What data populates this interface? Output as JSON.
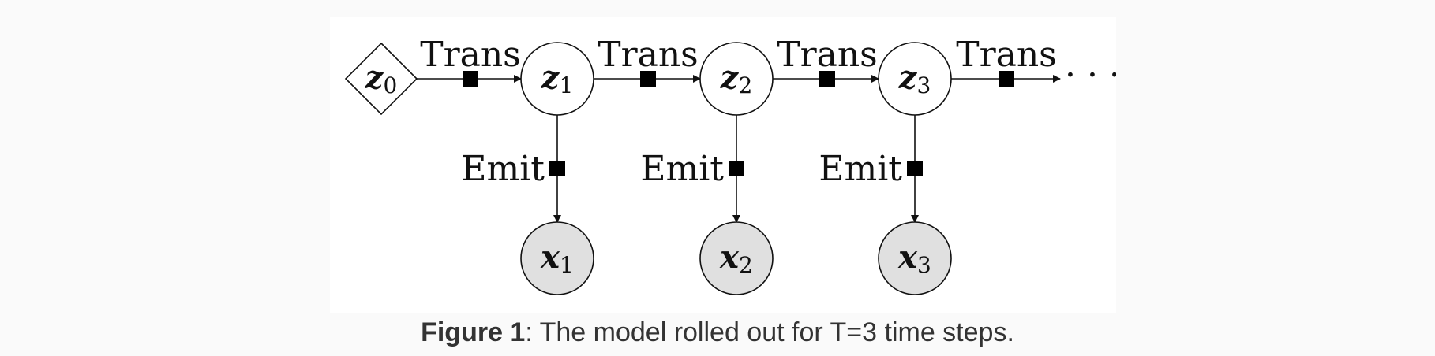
{
  "diagram": {
    "trans_label": "Trans",
    "emit_label": "Emit",
    "ellipsis": "· · ·",
    "initial_node": {
      "var": "z",
      "sub": "0"
    },
    "latent_nodes": [
      {
        "var": "z",
        "sub": "1"
      },
      {
        "var": "z",
        "sub": "2"
      },
      {
        "var": "z",
        "sub": "3"
      }
    ],
    "observed_nodes": [
      {
        "var": "x",
        "sub": "1"
      },
      {
        "var": "x",
        "sub": "2"
      },
      {
        "var": "x",
        "sub": "3"
      }
    ],
    "colors": {
      "edge": "#111111",
      "factor": "#000000",
      "latent_fill": "#ffffff",
      "observed_fill": "#e0e0e0"
    }
  },
  "caption": {
    "label": "Figure 1",
    "text": ": The model rolled out for T=3 time steps."
  }
}
